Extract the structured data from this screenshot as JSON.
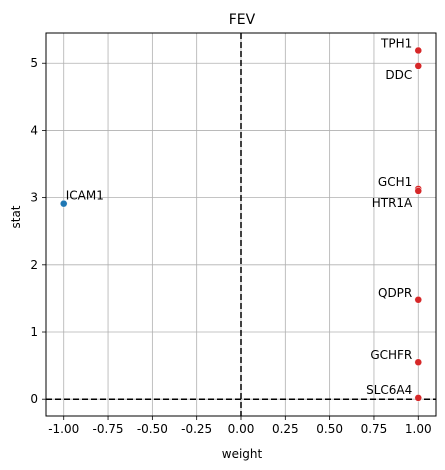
{
  "chart_data": {
    "type": "scatter",
    "title": "FEV",
    "xlabel": "weight",
    "ylabel": "stat",
    "xlim": [
      -1.1,
      1.1
    ],
    "ylim": [
      -0.25,
      5.45
    ],
    "xticks": [
      "-1.00",
      "-0.75",
      "-0.50",
      "-0.25",
      "0.00",
      "0.25",
      "0.50",
      "0.75",
      "1.00"
    ],
    "xtick_values": [
      -1.0,
      -0.75,
      -0.5,
      -0.25,
      0.0,
      0.25,
      0.5,
      0.75,
      1.0
    ],
    "yticks": [
      "0",
      "1",
      "2",
      "3",
      "4",
      "5"
    ],
    "ytick_values": [
      0,
      1,
      2,
      3,
      4,
      5
    ],
    "grid": true,
    "reference_lines": {
      "x": 0,
      "y": 0,
      "style": "dashed"
    },
    "colors": {
      "positive": "#d62728",
      "negative": "#1f77b4"
    },
    "points": [
      {
        "label": "ICAM1",
        "x": -1.0,
        "y": 2.91,
        "color": "#1f77b4",
        "label_side": "right",
        "label_dy": -4
      },
      {
        "label": "TPH1",
        "x": 1.0,
        "y": 5.19,
        "color": "#d62728",
        "label_side": "left",
        "label_dy": -3
      },
      {
        "label": "DDC",
        "x": 1.0,
        "y": 4.96,
        "color": "#d62728",
        "label_side": "left",
        "label_dy": 13
      },
      {
        "label": "GCH1",
        "x": 1.0,
        "y": 3.13,
        "color": "#d62728",
        "label_side": "left",
        "label_dy": -3
      },
      {
        "label": "HTR1A",
        "x": 1.0,
        "y": 3.1,
        "color": "#d62728",
        "label_side": "left",
        "label_dy": 16
      },
      {
        "label": "QDPR",
        "x": 1.0,
        "y": 1.48,
        "color": "#d62728",
        "label_side": "left",
        "label_dy": -3
      },
      {
        "label": "GCHFR",
        "x": 1.0,
        "y": 0.55,
        "color": "#d62728",
        "label_side": "left",
        "label_dy": -3
      },
      {
        "label": "SLC6A4",
        "x": 1.0,
        "y": 0.02,
        "color": "#d62728",
        "label_side": "left",
        "label_dy": -4
      }
    ]
  }
}
